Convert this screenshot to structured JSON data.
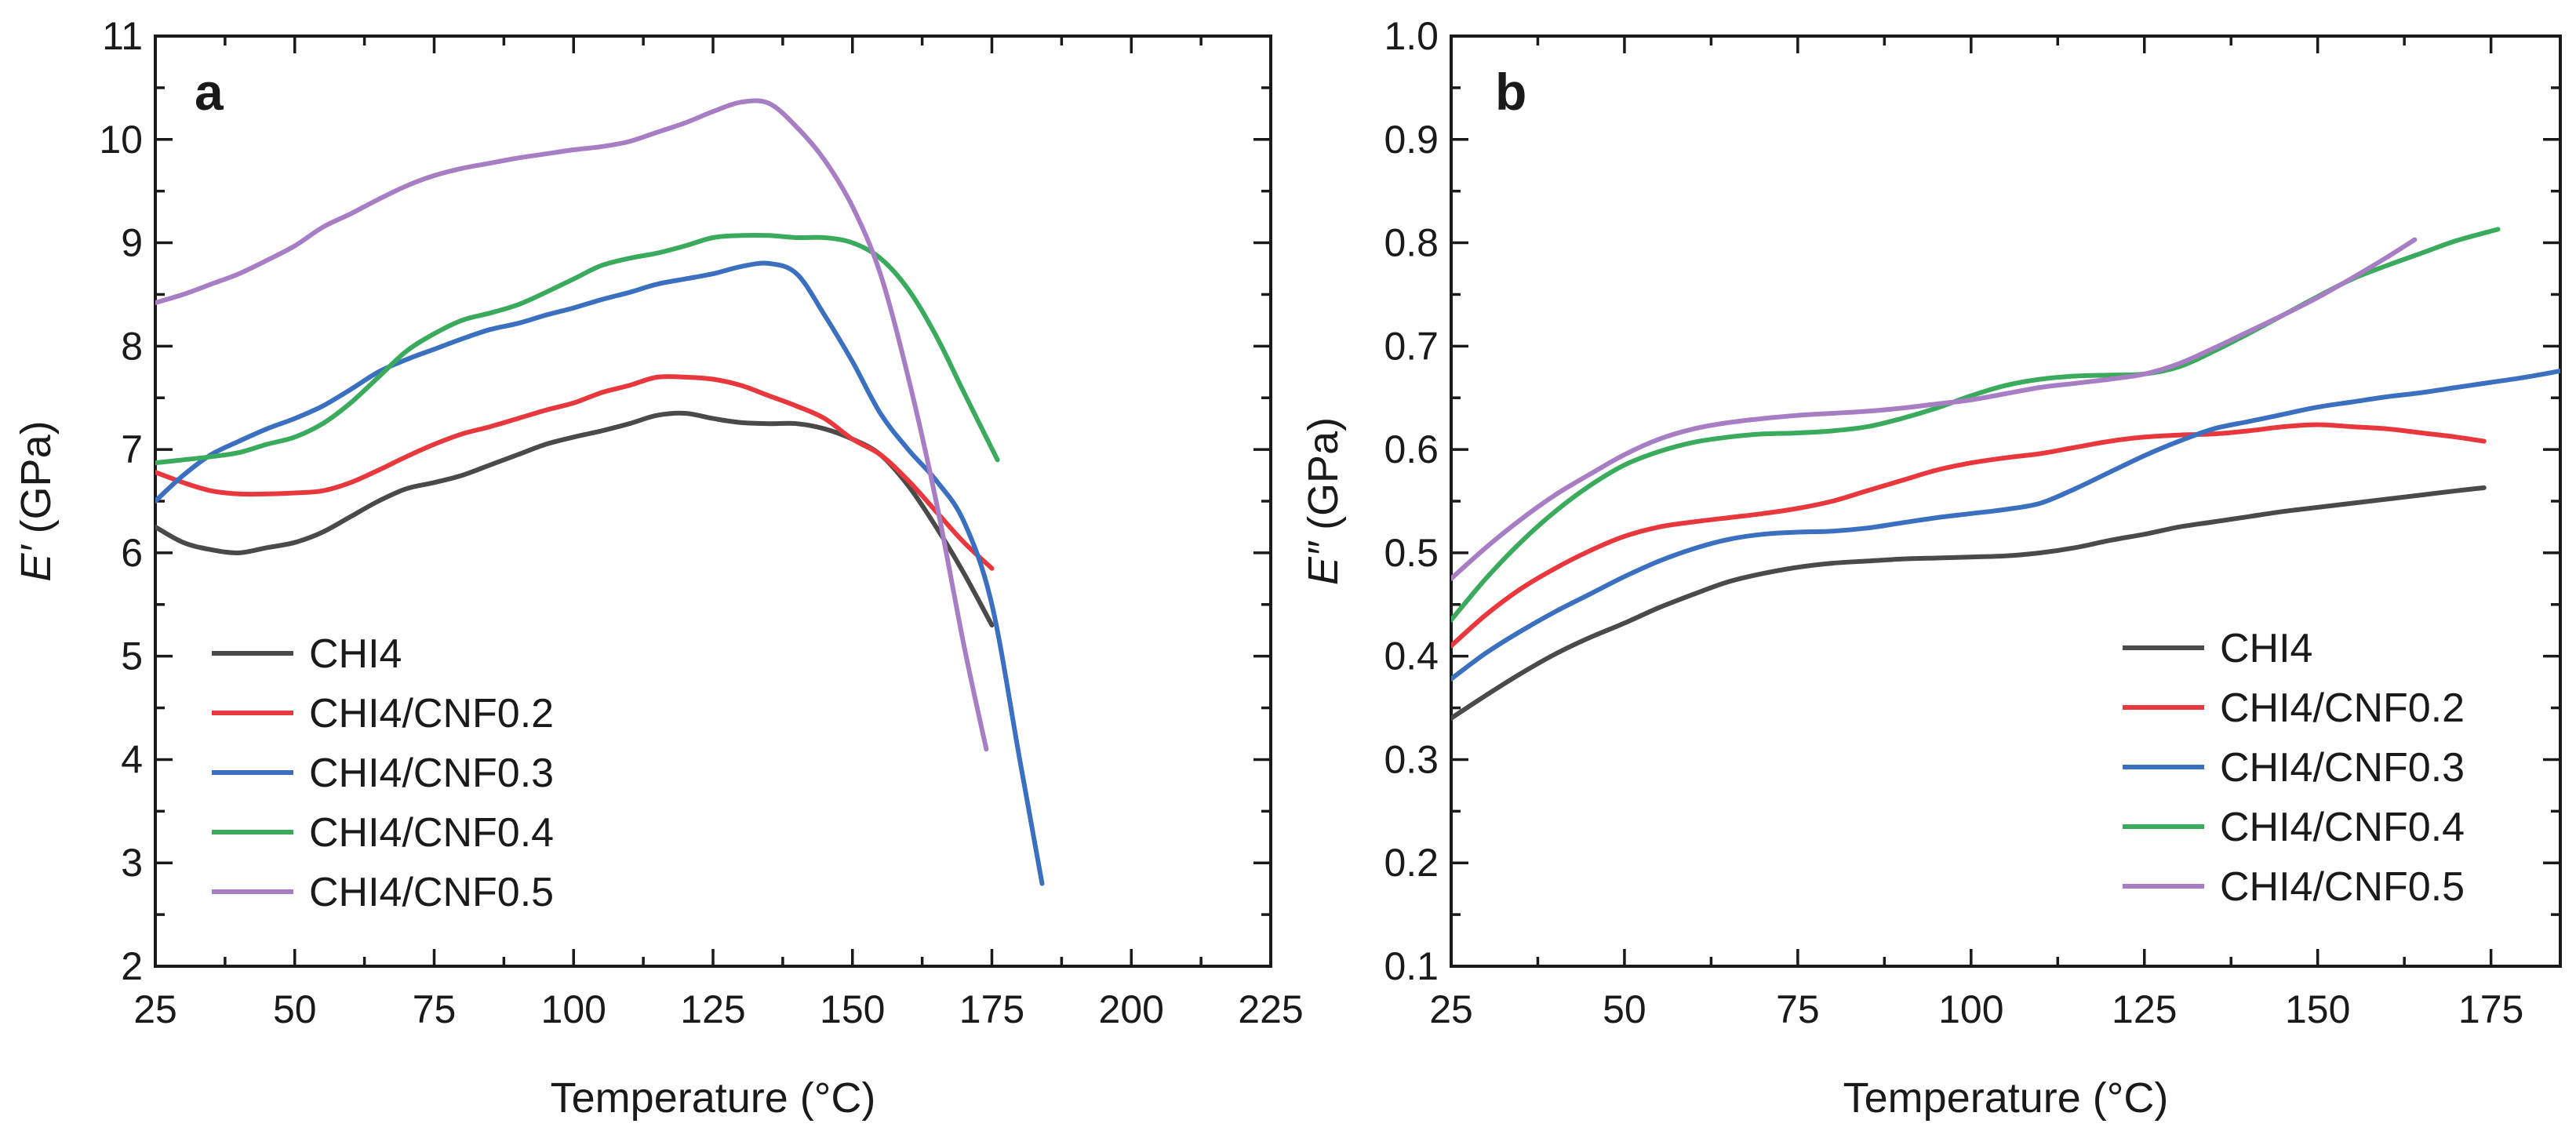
{
  "colors": {
    "CHI4": "#4a4a4a",
    "CHI4/CNF0.2": "#e8383d",
    "CHI4/CNF0.3": "#3b6fc0",
    "CHI4/CNF0.4": "#3aaa5c",
    "CHI4/CNF0.5": "#a77dc4"
  },
  "chart_data": [
    {
      "panel": "a",
      "type": "line",
      "xlabel": "Temperature (°C)",
      "ylabel_var": "E′",
      "ylabel_unit": " (GPa)",
      "xlim": [
        25,
        225
      ],
      "ylim": [
        2,
        11
      ],
      "xticks": [
        25,
        50,
        75,
        100,
        125,
        150,
        175,
        200,
        225
      ],
      "yticks": [
        2,
        3,
        4,
        5,
        6,
        7,
        8,
        9,
        10,
        11
      ],
      "xtick_labels": [
        "25",
        "50",
        "75",
        "100",
        "125",
        "150",
        "175",
        "200",
        "225"
      ],
      "ytick_labels": [
        "2",
        "3",
        "4",
        "5",
        "6",
        "7",
        "8",
        "9",
        "10",
        "11"
      ],
      "legend_position": "bottom-left",
      "series": [
        {
          "name": "CHI4",
          "x": [
            25,
            30,
            35,
            40,
            45,
            50,
            55,
            60,
            65,
            70,
            75,
            80,
            85,
            90,
            95,
            100,
            105,
            110,
            115,
            120,
            125,
            130,
            135,
            140,
            145,
            150,
            155,
            160,
            165,
            170,
            175
          ],
          "y": [
            6.25,
            6.1,
            6.03,
            6.0,
            6.05,
            6.1,
            6.2,
            6.35,
            6.5,
            6.62,
            6.68,
            6.75,
            6.85,
            6.95,
            7.05,
            7.12,
            7.18,
            7.25,
            7.33,
            7.35,
            7.3,
            7.26,
            7.25,
            7.25,
            7.2,
            7.1,
            6.95,
            6.65,
            6.25,
            5.8,
            5.3
          ]
        },
        {
          "name": "CHI4/CNF0.2",
          "x": [
            25,
            30,
            35,
            40,
            45,
            50,
            55,
            60,
            65,
            70,
            75,
            80,
            85,
            90,
            95,
            100,
            105,
            110,
            115,
            120,
            125,
            130,
            135,
            140,
            145,
            150,
            155,
            160,
            165,
            170,
            175
          ],
          "y": [
            6.78,
            6.68,
            6.6,
            6.57,
            6.57,
            6.58,
            6.6,
            6.68,
            6.8,
            6.93,
            7.05,
            7.15,
            7.22,
            7.3,
            7.38,
            7.45,
            7.55,
            7.62,
            7.7,
            7.7,
            7.68,
            7.62,
            7.52,
            7.42,
            7.3,
            7.1,
            6.95,
            6.7,
            6.4,
            6.1,
            5.85
          ]
        },
        {
          "name": "CHI4/CNF0.3",
          "x": [
            25,
            30,
            35,
            40,
            45,
            50,
            55,
            60,
            65,
            70,
            75,
            80,
            85,
            90,
            95,
            100,
            105,
            110,
            115,
            120,
            125,
            130,
            135,
            140,
            145,
            150,
            155,
            160,
            165,
            170,
            175,
            180,
            184
          ],
          "y": [
            6.5,
            6.75,
            6.95,
            7.08,
            7.2,
            7.3,
            7.42,
            7.58,
            7.75,
            7.87,
            7.97,
            8.07,
            8.16,
            8.22,
            8.3,
            8.37,
            8.45,
            8.52,
            8.6,
            8.65,
            8.7,
            8.77,
            8.8,
            8.7,
            8.3,
            7.85,
            7.35,
            7.0,
            6.7,
            6.3,
            5.5,
            4.0,
            2.8
          ]
        },
        {
          "name": "CHI4/CNF0.4",
          "x": [
            25,
            30,
            35,
            40,
            45,
            50,
            55,
            60,
            65,
            70,
            75,
            80,
            85,
            90,
            95,
            100,
            105,
            110,
            115,
            120,
            125,
            130,
            135,
            140,
            145,
            150,
            155,
            160,
            165,
            170,
            176
          ],
          "y": [
            6.87,
            6.9,
            6.93,
            6.97,
            7.05,
            7.12,
            7.25,
            7.45,
            7.7,
            7.95,
            8.12,
            8.25,
            8.32,
            8.4,
            8.52,
            8.65,
            8.78,
            8.85,
            8.9,
            8.97,
            9.05,
            9.07,
            9.07,
            9.05,
            9.05,
            9.0,
            8.85,
            8.55,
            8.1,
            7.55,
            6.9
          ]
        },
        {
          "name": "CHI4/CNF0.5",
          "x": [
            25,
            30,
            35,
            40,
            45,
            50,
            55,
            60,
            65,
            70,
            75,
            80,
            85,
            90,
            95,
            100,
            105,
            110,
            115,
            120,
            125,
            130,
            135,
            140,
            145,
            150,
            155,
            160,
            165,
            170,
            174
          ],
          "y": [
            8.42,
            8.5,
            8.6,
            8.7,
            8.83,
            8.97,
            9.15,
            9.28,
            9.42,
            9.55,
            9.65,
            9.72,
            9.77,
            9.82,
            9.86,
            9.9,
            9.93,
            9.98,
            10.07,
            10.16,
            10.27,
            10.36,
            10.35,
            10.12,
            9.8,
            9.35,
            8.7,
            7.7,
            6.5,
            5.1,
            4.1
          ]
        }
      ]
    },
    {
      "panel": "b",
      "type": "line",
      "xlabel": "Temperature (°C)",
      "ylabel_var": "E″",
      "ylabel_unit": " (GPa)",
      "xlim": [
        25,
        185
      ],
      "ylim": [
        0.1,
        1.0
      ],
      "xticks": [
        25,
        50,
        75,
        100,
        125,
        150,
        175
      ],
      "yticks": [
        0.1,
        0.2,
        0.3,
        0.4,
        0.5,
        0.6,
        0.7,
        0.8,
        0.9,
        1.0
      ],
      "xtick_labels": [
        "25",
        "50",
        "75",
        "100",
        "125",
        "150",
        "175"
      ],
      "ytick_labels": [
        "0.1",
        "0.2",
        "0.3",
        "0.4",
        "0.5",
        "0.6",
        "0.7",
        "0.8",
        "0.9",
        "1.0"
      ],
      "legend_position": "bottom-right",
      "series": [
        {
          "name": "CHI4",
          "x": [
            25,
            30,
            35,
            40,
            45,
            50,
            55,
            60,
            65,
            70,
            75,
            80,
            85,
            90,
            95,
            100,
            105,
            110,
            115,
            120,
            125,
            130,
            135,
            140,
            145,
            150,
            155,
            160,
            165,
            170,
            174
          ],
          "y": [
            0.34,
            0.362,
            0.383,
            0.402,
            0.418,
            0.432,
            0.447,
            0.46,
            0.472,
            0.48,
            0.486,
            0.49,
            0.492,
            0.494,
            0.495,
            0.496,
            0.497,
            0.5,
            0.505,
            0.512,
            0.518,
            0.525,
            0.53,
            0.535,
            0.54,
            0.544,
            0.548,
            0.552,
            0.556,
            0.56,
            0.563
          ]
        },
        {
          "name": "CHI4/CNF0.2",
          "x": [
            25,
            30,
            35,
            40,
            45,
            50,
            55,
            60,
            65,
            70,
            75,
            80,
            85,
            90,
            95,
            100,
            105,
            110,
            115,
            120,
            125,
            130,
            135,
            140,
            145,
            150,
            155,
            160,
            165,
            170,
            174
          ],
          "y": [
            0.41,
            0.44,
            0.465,
            0.485,
            0.502,
            0.516,
            0.525,
            0.53,
            0.534,
            0.538,
            0.543,
            0.55,
            0.56,
            0.57,
            0.58,
            0.587,
            0.592,
            0.596,
            0.602,
            0.608,
            0.612,
            0.614,
            0.615,
            0.618,
            0.622,
            0.624,
            0.622,
            0.62,
            0.616,
            0.612,
            0.608
          ]
        },
        {
          "name": "CHI4/CNF0.3",
          "x": [
            25,
            30,
            35,
            40,
            45,
            50,
            55,
            60,
            65,
            70,
            75,
            80,
            85,
            90,
            95,
            100,
            105,
            110,
            115,
            120,
            125,
            130,
            135,
            140,
            145,
            150,
            155,
            160,
            165,
            170,
            175,
            180,
            185
          ],
          "y": [
            0.378,
            0.403,
            0.424,
            0.443,
            0.46,
            0.477,
            0.492,
            0.504,
            0.513,
            0.518,
            0.52,
            0.521,
            0.524,
            0.529,
            0.534,
            0.538,
            0.542,
            0.548,
            0.562,
            0.578,
            0.594,
            0.608,
            0.62,
            0.627,
            0.634,
            0.641,
            0.646,
            0.651,
            0.655,
            0.66,
            0.665,
            0.67,
            0.676
          ]
        },
        {
          "name": "CHI4/CNF0.4",
          "x": [
            25,
            30,
            35,
            40,
            45,
            50,
            55,
            60,
            65,
            70,
            75,
            80,
            85,
            90,
            95,
            100,
            105,
            110,
            115,
            120,
            125,
            130,
            135,
            140,
            145,
            150,
            155,
            160,
            165,
            170,
            176
          ],
          "y": [
            0.435,
            0.475,
            0.51,
            0.54,
            0.565,
            0.585,
            0.598,
            0.607,
            0.612,
            0.615,
            0.616,
            0.618,
            0.622,
            0.63,
            0.64,
            0.652,
            0.662,
            0.668,
            0.671,
            0.672,
            0.673,
            0.68,
            0.695,
            0.712,
            0.73,
            0.748,
            0.765,
            0.778,
            0.79,
            0.802,
            0.813
          ]
        },
        {
          "name": "CHI4/CNF0.5",
          "x": [
            25,
            30,
            35,
            40,
            45,
            50,
            55,
            60,
            65,
            70,
            75,
            80,
            85,
            90,
            95,
            100,
            105,
            110,
            115,
            120,
            125,
            130,
            135,
            140,
            145,
            150,
            155,
            160,
            164
          ],
          "y": [
            0.475,
            0.505,
            0.532,
            0.556,
            0.576,
            0.595,
            0.61,
            0.62,
            0.626,
            0.63,
            0.633,
            0.635,
            0.637,
            0.64,
            0.644,
            0.648,
            0.654,
            0.66,
            0.664,
            0.668,
            0.673,
            0.683,
            0.698,
            0.714,
            0.73,
            0.747,
            0.766,
            0.786,
            0.803
          ]
        }
      ]
    }
  ]
}
